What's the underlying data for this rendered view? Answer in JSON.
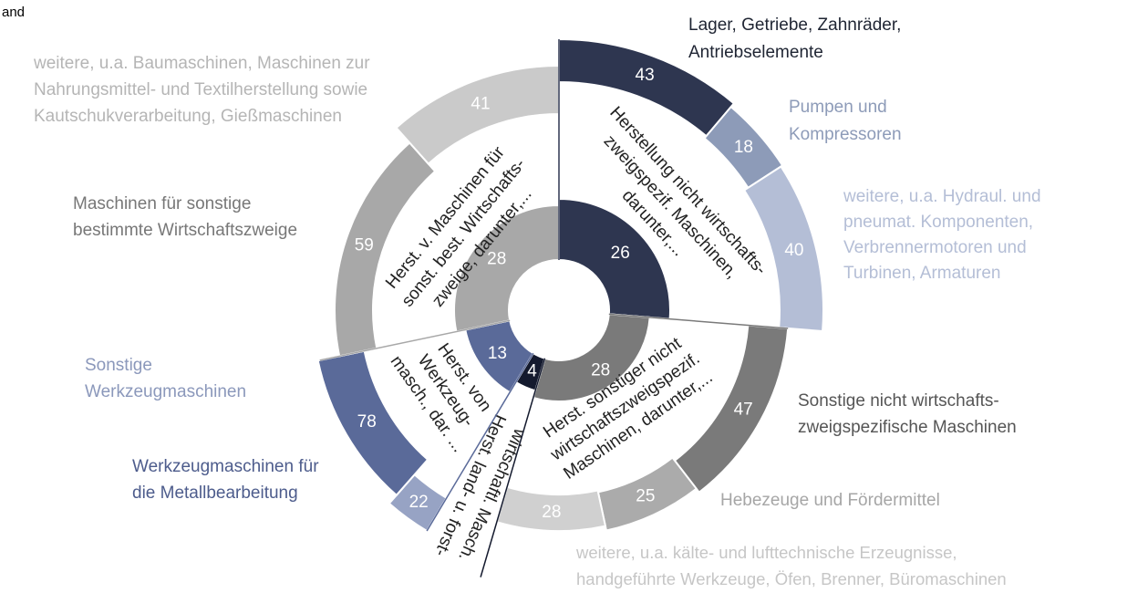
{
  "chart_data": {
    "type": "sunburst",
    "corner_text": "and",
    "groups": [
      {
        "lines": [
          "Herstellung nicht wirtschafts-",
          "zweigspezif. Maschinen,",
          "darunter,..."
        ],
        "value": 26,
        "color": "#2e3650",
        "children": [
          {
            "lines": [
              "Lager, Getriebe, Zahnräder,",
              "Antriebselemente"
            ],
            "value": 43,
            "color": "#2e3650",
            "label_color": "#1f2533"
          },
          {
            "lines": [
              "Pumpen und",
              "Kompressoren"
            ],
            "value": 18,
            "color": "#8d9bb8",
            "label_color": "#8d9bb8"
          },
          {
            "lines": [
              "weitere, u.a. Hydraul. und",
              "pneumat. Komponenten,",
              "Verbrennermotoren  und",
              "Turbinen,  Armaturen"
            ],
            "value": 40,
            "color": "#b4bed6",
            "label_color": "#b4bed6"
          }
        ]
      },
      {
        "lines": [
          "Herst. sonstiger nicht",
          "wirtschaftszweigspezif.",
          "Maschinen, darunter,..."
        ],
        "value": 28,
        "color": "#7a7a7a",
        "children": [
          {
            "lines": [
              "Sonstige nicht wirtschafts-",
              "zweigspezifische Maschinen"
            ],
            "value": 47,
            "color": "#7a7a7a",
            "label_color": "#555555"
          },
          {
            "lines": [
              "Hebezeuge  und Fördermittel"
            ],
            "value": 25,
            "color": "#ababab",
            "label_color": "#a6a6a6"
          },
          {
            "lines": [
              "weitere, u.a. kälte- und lufttechnische Erzeugnisse,",
              "handgeführte  Werkzeuge, Öfen, Brenner, Büromaschinen"
            ],
            "value": 28,
            "color": "#d0d0d0",
            "label_color": "#c6c6c6"
          }
        ]
      },
      {
        "lines": [
          "Herst. land- u. forst-",
          "wirtschaftl. Masch."
        ],
        "value": 4,
        "color": "#141a2e",
        "children": []
      },
      {
        "lines": [
          "Herst. von",
          "Werkzeug-",
          "masch., dar. ..."
        ],
        "value": 13,
        "color": "#5a6a99",
        "children": [
          {
            "lines": [
              "Sonstige",
              "Werkzeugmaschinen"
            ],
            "value": 22,
            "color": "#97a3c4",
            "label_color": "#8b98bb"
          },
          {
            "lines": [
              "Werkzeugmaschinen für",
              "die Metallbearbeitung"
            ],
            "value": 78,
            "color": "#5a6a99",
            "label_color": "#4d5c8c"
          }
        ]
      },
      {
        "lines": [
          "Herst. v. Maschinen für",
          "sonst. best. Wirtschafts-",
          "zweige, darunter,..."
        ],
        "value": 28,
        "color": "#a8a8a8",
        "children": [
          {
            "lines": [
              "Maschinen für sonstige",
              "bestimmte Wirtschaftszweige"
            ],
            "value": 59,
            "color": "#a8a8a8",
            "label_color": "#777777"
          },
          {
            "lines": [
              "weitere, u.a. Baumaschinen, Maschinen zur",
              "Nahrungsmittel- und Textilherstellung sowie",
              "Kautschukverarbeitung,  Gießmaschinen"
            ],
            "value": 41,
            "color": "#cacaca",
            "label_color": "#b5b5b5"
          }
        ]
      }
    ]
  }
}
